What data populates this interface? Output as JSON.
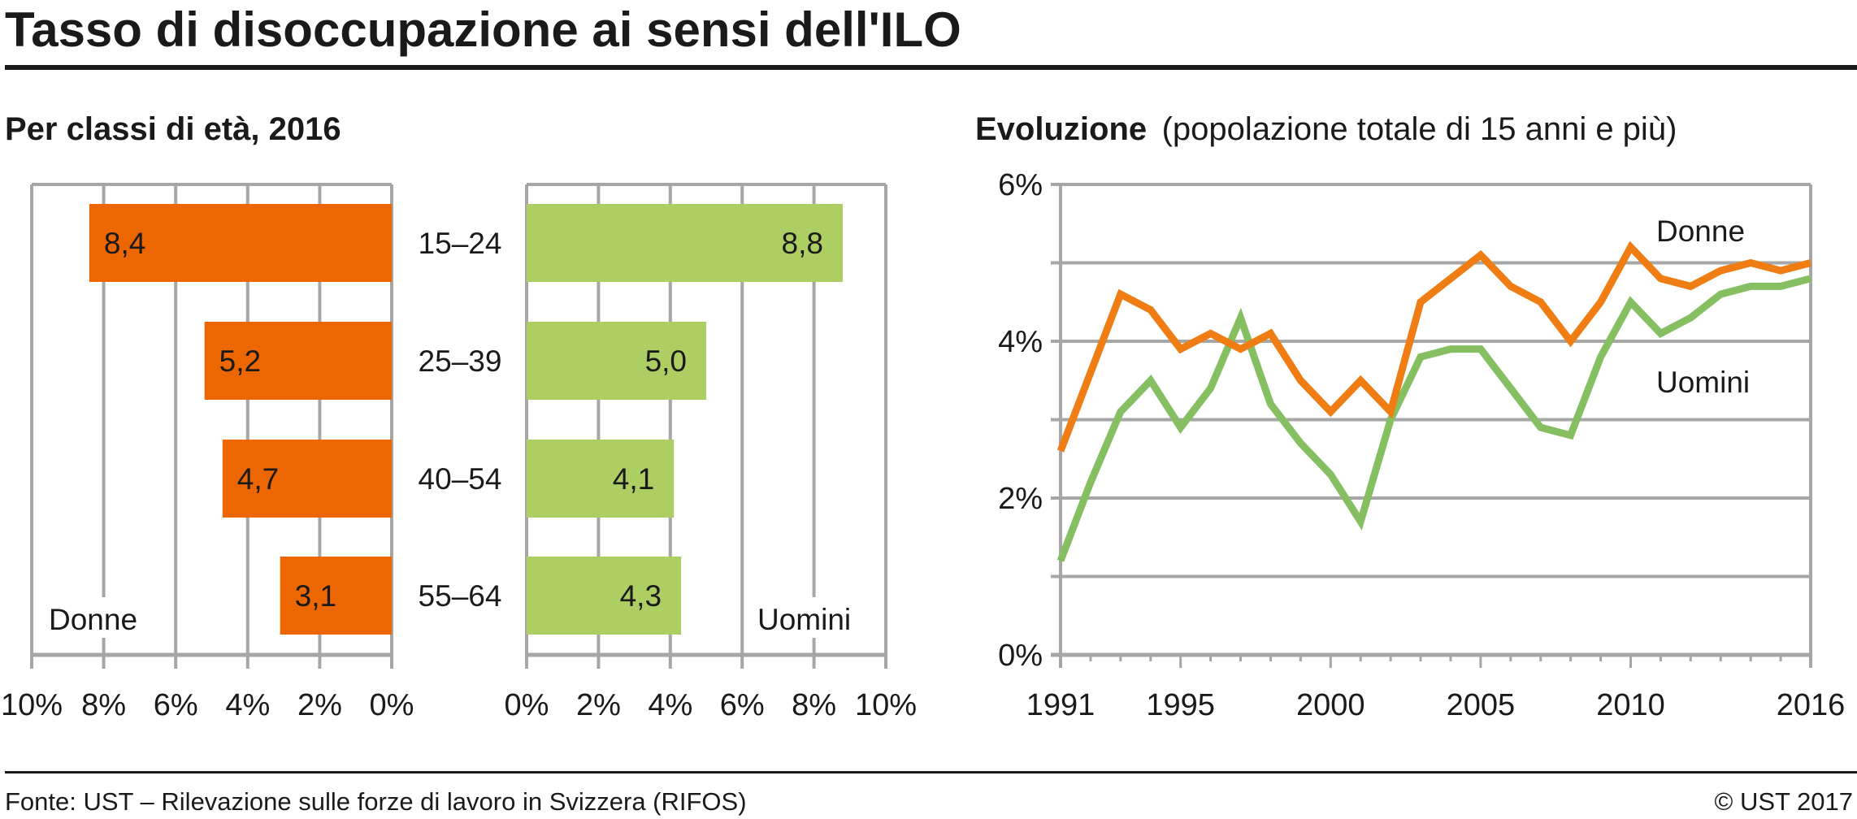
{
  "header": {
    "title": "Tasso di disoccupazione ai sensi dell'ILO"
  },
  "left_panel": {
    "subtitle": "Per classi di età, 2016"
  },
  "right_panel": {
    "subtitle_bold": "Evoluzione",
    "subtitle_light": "(popolazione totale di 15 anni e più)"
  },
  "footer": {
    "source": "Fonte: UST – Rilevazione sulle forze di lavoro in Svizzera (RIFOS)",
    "copyright": "© UST 2017"
  },
  "colors": {
    "donne_bar": "#EC6602",
    "uomini_bar": "#ADCE62",
    "donne_line": "#F07D13",
    "uomini_line": "#86BF62",
    "grid": "#A6A6A6",
    "rule": "#1a1a1a"
  },
  "chart_data": [
    {
      "type": "bar",
      "orientation": "horizontal",
      "title": "Per classi di età, 2016",
      "categories": [
        "15–24",
        "25–39",
        "40–54",
        "55–64"
      ],
      "series": [
        {
          "name": "Donne",
          "values": [
            8.4,
            5.2,
            4.7,
            3.1
          ],
          "labels": [
            "8,4",
            "5,2",
            "4,7",
            "3,1"
          ],
          "direction": "left",
          "xlim": [
            0,
            10
          ],
          "ticks": [
            "10%",
            "8%",
            "6%",
            "4%",
            "2%",
            "0%"
          ]
        },
        {
          "name": "Uomini",
          "values": [
            8.8,
            5.0,
            4.1,
            4.3
          ],
          "labels": [
            "8,8",
            "5,0",
            "4,1",
            "4,3"
          ],
          "direction": "right",
          "xlim": [
            0,
            10
          ],
          "ticks": [
            "0%",
            "2%",
            "4%",
            "6%",
            "8%",
            "10%"
          ]
        }
      ],
      "unit": "%",
      "grid": true
    },
    {
      "type": "line",
      "title": "Evoluzione (popolazione totale di 15 anni e più)",
      "x": [
        1991,
        1992,
        1993,
        1994,
        1995,
        1996,
        1997,
        1998,
        1999,
        2000,
        2001,
        2002,
        2003,
        2004,
        2005,
        2006,
        2007,
        2008,
        2009,
        2010,
        2011,
        2012,
        2013,
        2014,
        2015,
        2016
      ],
      "series": [
        {
          "name": "Donne",
          "values": [
            2.6,
            3.6,
            4.6,
            4.4,
            3.9,
            4.1,
            3.9,
            4.1,
            3.5,
            3.1,
            3.5,
            3.1,
            4.5,
            4.8,
            5.1,
            4.7,
            4.5,
            4.0,
            4.5,
            5.2,
            4.8,
            4.7,
            4.9,
            5.0,
            4.9,
            5.0
          ]
        },
        {
          "name": "Uomini",
          "values": [
            1.2,
            2.2,
            3.1,
            3.5,
            2.9,
            3.4,
            4.3,
            3.2,
            2.7,
            2.3,
            1.7,
            3.0,
            3.8,
            3.9,
            3.9,
            3.4,
            2.9,
            2.8,
            3.8,
            4.5,
            4.1,
            4.3,
            4.6,
            4.7,
            4.7,
            4.8
          ]
        }
      ],
      "xlim": [
        1991,
        2016
      ],
      "ylim": [
        0,
        6
      ],
      "xticks": [
        "1991",
        "1995",
        "2000",
        "2005",
        "2010",
        "2016"
      ],
      "xtick_values": [
        1991,
        1995,
        2000,
        2005,
        2010,
        2016
      ],
      "yticks": [
        "0%",
        "2%",
        "4%",
        "6%"
      ],
      "ytick_values": [
        0,
        2,
        4,
        6
      ],
      "grid": true,
      "legend": "inline-labels top-right"
    }
  ]
}
